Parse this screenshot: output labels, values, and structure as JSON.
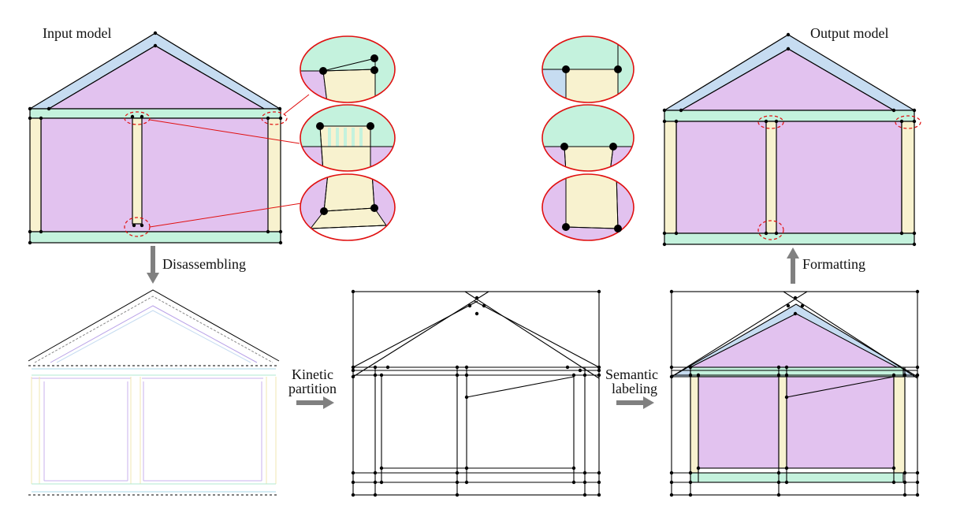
{
  "labels": {
    "input_model": "Input model",
    "output_model": "Output model",
    "disassembling": "Disassembling",
    "kinetic_1": "Kinetic",
    "kinetic_2": "partition",
    "semantic_1": "Semantic",
    "semantic_2": "labeling",
    "formatting": "Formatting"
  },
  "colors": {
    "roof": "#c6dcf1",
    "gable": "#e2c2ef",
    "beam": "#c4f2dd",
    "column": "#f8f2cf",
    "highlight": "#e01010",
    "arrow": "#808080",
    "stroke": "#000000"
  }
}
